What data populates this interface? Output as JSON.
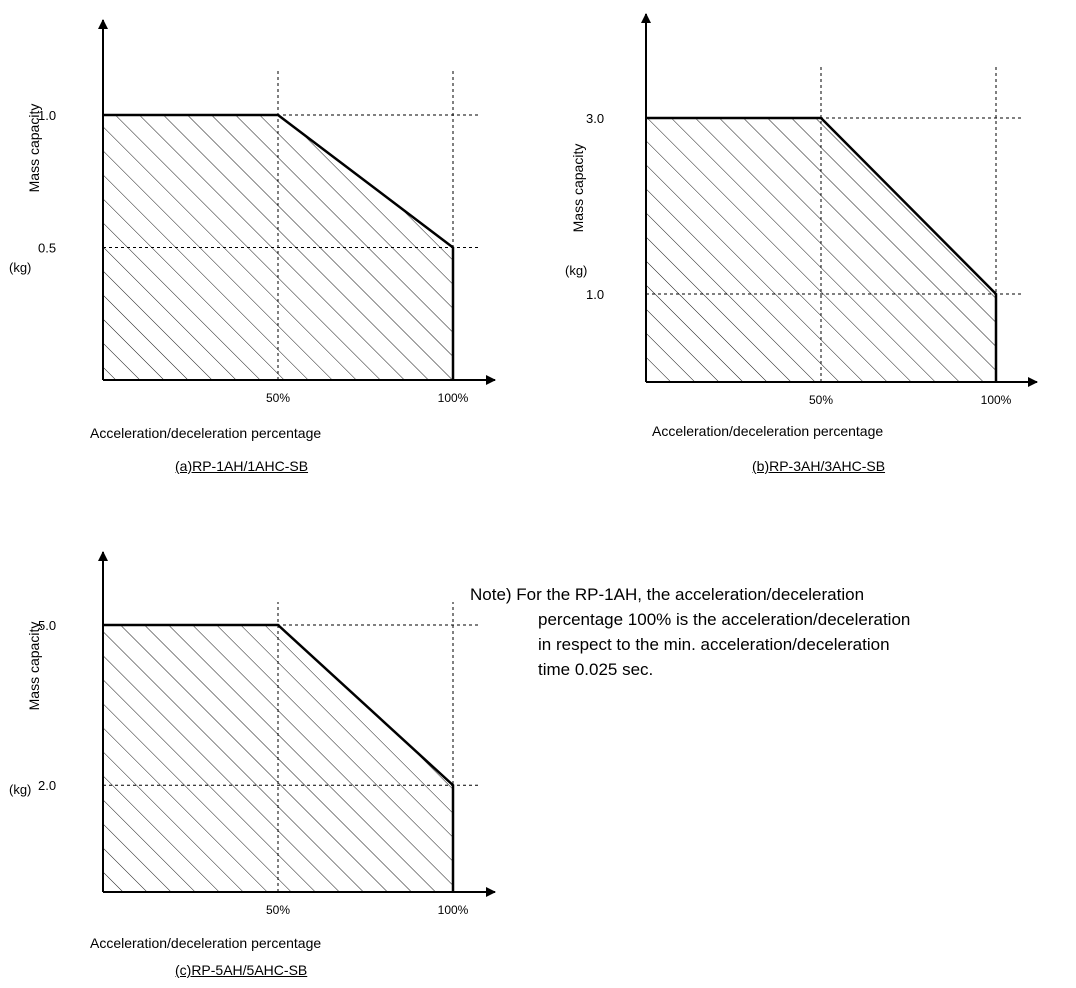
{
  "chart_data": [
    {
      "type": "area",
      "title": "(a)RP-1AH/1AHC-SB",
      "xlabel": "Acceleration/deceleration percentage",
      "ylabel": "Mass capacity",
      "yunit": "(kg)",
      "x": [
        0,
        50,
        100
      ],
      "y": [
        1.0,
        1.0,
        0.5
      ],
      "xticks": [
        "50%",
        "100%"
      ],
      "xtick_values": [
        50,
        100
      ],
      "yticks": [
        "1.0",
        "0.5"
      ],
      "ytick_values": [
        1.0,
        0.5
      ],
      "xlim": [
        0,
        100
      ],
      "ylim": [
        0,
        1.0
      ],
      "grid": "dashed reference lines",
      "fill": "hatched"
    },
    {
      "type": "area",
      "title": "(b)RP-3AH/3AHC-SB",
      "xlabel": "Acceleration/deceleration percentage",
      "ylabel": "Mass capacity",
      "yunit": "(kg)",
      "x": [
        0,
        50,
        100
      ],
      "y": [
        3.0,
        3.0,
        1.0
      ],
      "xticks": [
        "50%",
        "100%"
      ],
      "xtick_values": [
        50,
        100
      ],
      "yticks": [
        "3.0",
        "1.0"
      ],
      "ytick_values": [
        3.0,
        1.0
      ],
      "xlim": [
        0,
        100
      ],
      "ylim": [
        0,
        3.0
      ],
      "grid": "dashed reference lines",
      "fill": "hatched"
    },
    {
      "type": "area",
      "title": "(c)RP-5AH/5AHC-SB",
      "xlabel": "Acceleration/deceleration percentage",
      "ylabel": "Mass capacity",
      "yunit": "(kg)",
      "x": [
        0,
        50,
        100
      ],
      "y": [
        5.0,
        5.0,
        2.0
      ],
      "xticks": [
        "50%",
        "100%"
      ],
      "xtick_values": [
        50,
        100
      ],
      "yticks": [
        "5.0",
        "2.0"
      ],
      "ytick_values": [
        5.0,
        2.0
      ],
      "xlim": [
        0,
        100
      ],
      "ylim": [
        0,
        5.0
      ],
      "grid": "dashed reference lines",
      "fill": "hatched"
    }
  ],
  "note": {
    "lines": [
      "Note) For the RP-1AH, the acceleration/deceleration",
      "percentage 100% is the acceleration/deceleration",
      "in respect to the min. acceleration/deceleration",
      "time 0.025 sec."
    ]
  }
}
